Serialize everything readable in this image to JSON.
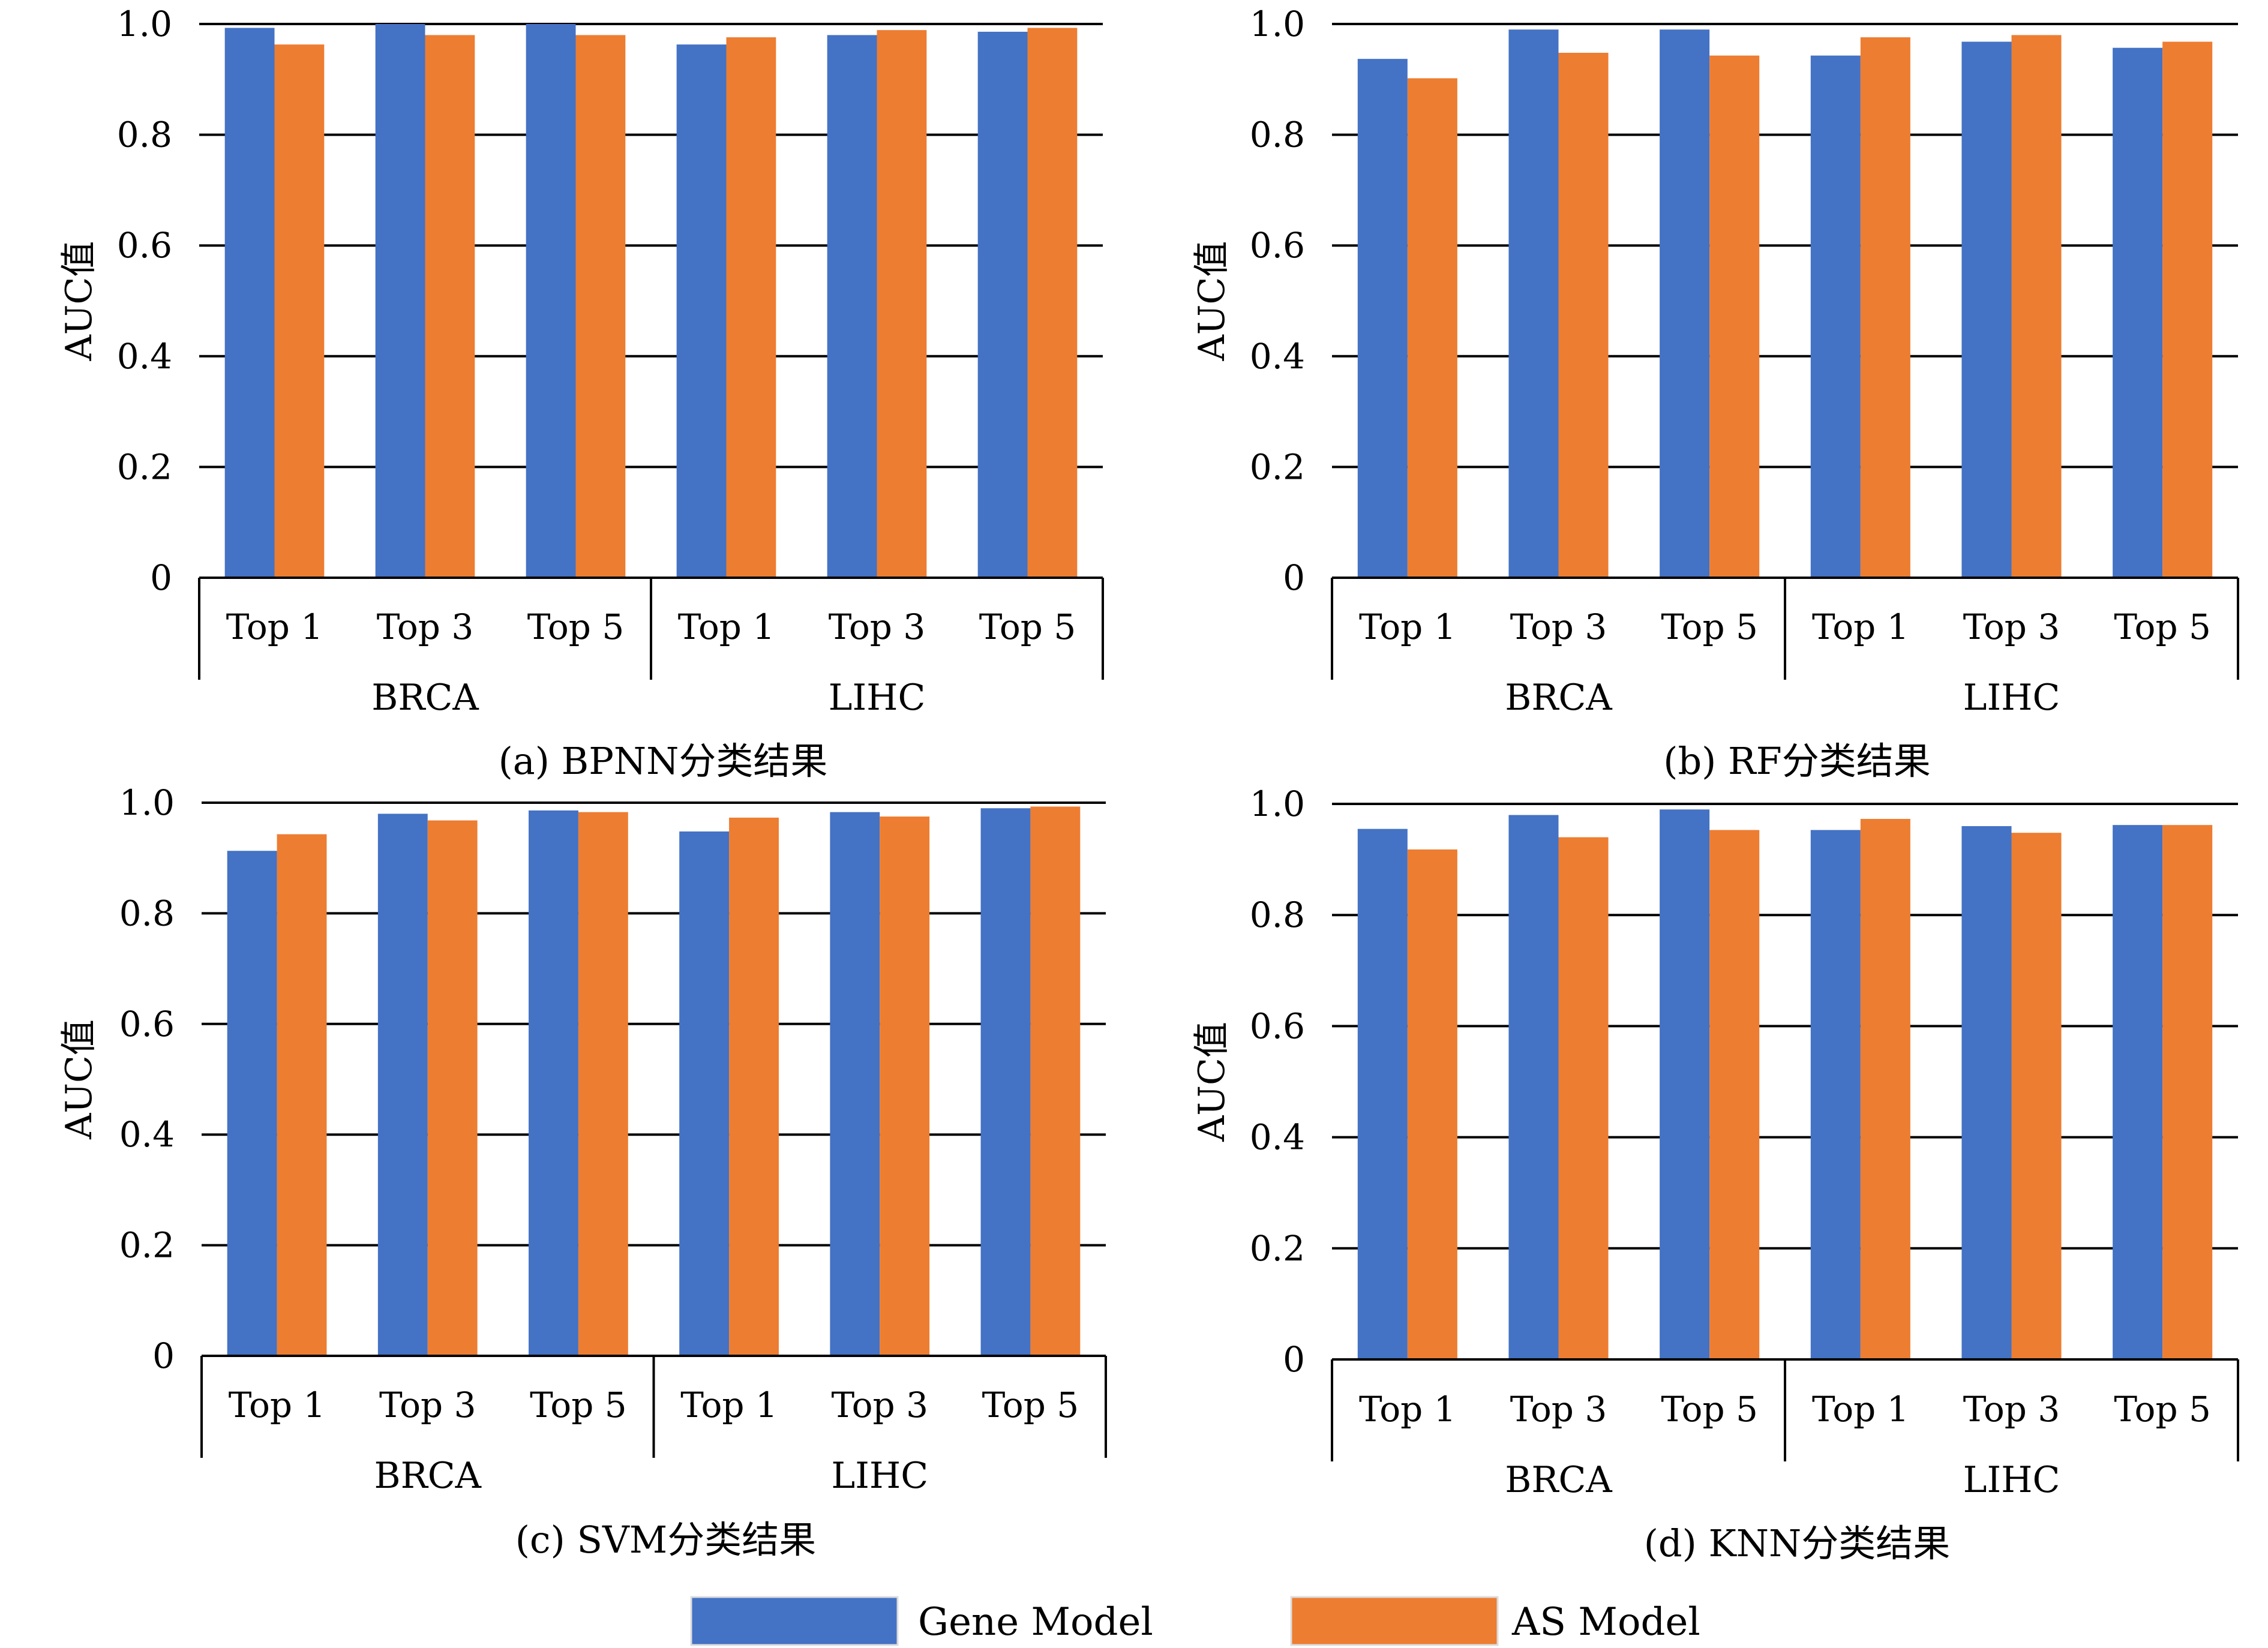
{
  "colors": {
    "gene": "#4472C4",
    "as": "#ED7D31",
    "grid": "#000000",
    "text": "#000000"
  },
  "legend": {
    "gene_label": "Gene Model",
    "as_label": "AS Model"
  },
  "chart_data": [
    {
      "type": "bar",
      "caption": "(a) BPNN分类结果",
      "ylabel": "AUC值",
      "ylim": [
        0,
        1.0
      ],
      "yticks": [
        "0",
        "0.2",
        "0.4",
        "0.6",
        "0.8",
        "1.0"
      ],
      "grid": true,
      "groups": [
        "BRCA",
        "LIHC"
      ],
      "categories": [
        "Top 1",
        "Top 3",
        "Top 5",
        "Top 1",
        "Top 3",
        "Top 5"
      ],
      "series": [
        {
          "name": "Gene Model",
          "values": [
            0.993,
            1.0,
            1.0,
            0.963,
            0.98,
            0.986
          ]
        },
        {
          "name": "AS Model",
          "values": [
            0.963,
            0.98,
            0.98,
            0.976,
            0.989,
            0.993
          ]
        }
      ]
    },
    {
      "type": "bar",
      "caption": "(b) RF分类结果",
      "ylabel": "AUC值",
      "ylim": [
        0,
        1.0
      ],
      "yticks": [
        "0",
        "0.2",
        "0.4",
        "0.6",
        "0.8",
        "1.0"
      ],
      "grid": true,
      "groups": [
        "BRCA",
        "LIHC"
      ],
      "categories": [
        "Top 1",
        "Top 3",
        "Top 5",
        "Top 1",
        "Top 3",
        "Top 5"
      ],
      "series": [
        {
          "name": "Gene Model",
          "values": [
            0.937,
            0.99,
            0.99,
            0.943,
            0.968,
            0.957
          ]
        },
        {
          "name": "AS Model",
          "values": [
            0.902,
            0.948,
            0.943,
            0.976,
            0.98,
            0.968
          ]
        }
      ]
    },
    {
      "type": "bar",
      "caption": "(c) SVM分类结果",
      "ylabel": "AUC值",
      "ylim": [
        0,
        1.0
      ],
      "yticks": [
        "0",
        "0.2",
        "0.4",
        "0.6",
        "0.8",
        "1.0"
      ],
      "grid": true,
      "groups": [
        "BRCA",
        "LIHC"
      ],
      "categories": [
        "Top 1",
        "Top 3",
        "Top 5",
        "Top 1",
        "Top 3",
        "Top 5"
      ],
      "series": [
        {
          "name": "Gene Model",
          "values": [
            0.913,
            0.98,
            0.986,
            0.948,
            0.983,
            0.99
          ]
        },
        {
          "name": "AS Model",
          "values": [
            0.943,
            0.968,
            0.983,
            0.973,
            0.975,
            0.993
          ]
        }
      ]
    },
    {
      "type": "bar",
      "caption": "(d) KNN分类结果",
      "ylabel": "AUC值",
      "ylim": [
        0,
        1.0
      ],
      "yticks": [
        "0",
        "0.2",
        "0.4",
        "0.6",
        "0.8",
        "1.0"
      ],
      "grid": true,
      "groups": [
        "BRCA",
        "LIHC"
      ],
      "categories": [
        "Top 1",
        "Top 3",
        "Top 5",
        "Top 1",
        "Top 3",
        "Top 5"
      ],
      "series": [
        {
          "name": "Gene Model",
          "values": [
            0.955,
            0.98,
            0.99,
            0.953,
            0.96,
            0.962
          ]
        },
        {
          "name": "AS Model",
          "values": [
            0.918,
            0.94,
            0.953,
            0.973,
            0.948,
            0.962
          ]
        }
      ]
    }
  ]
}
